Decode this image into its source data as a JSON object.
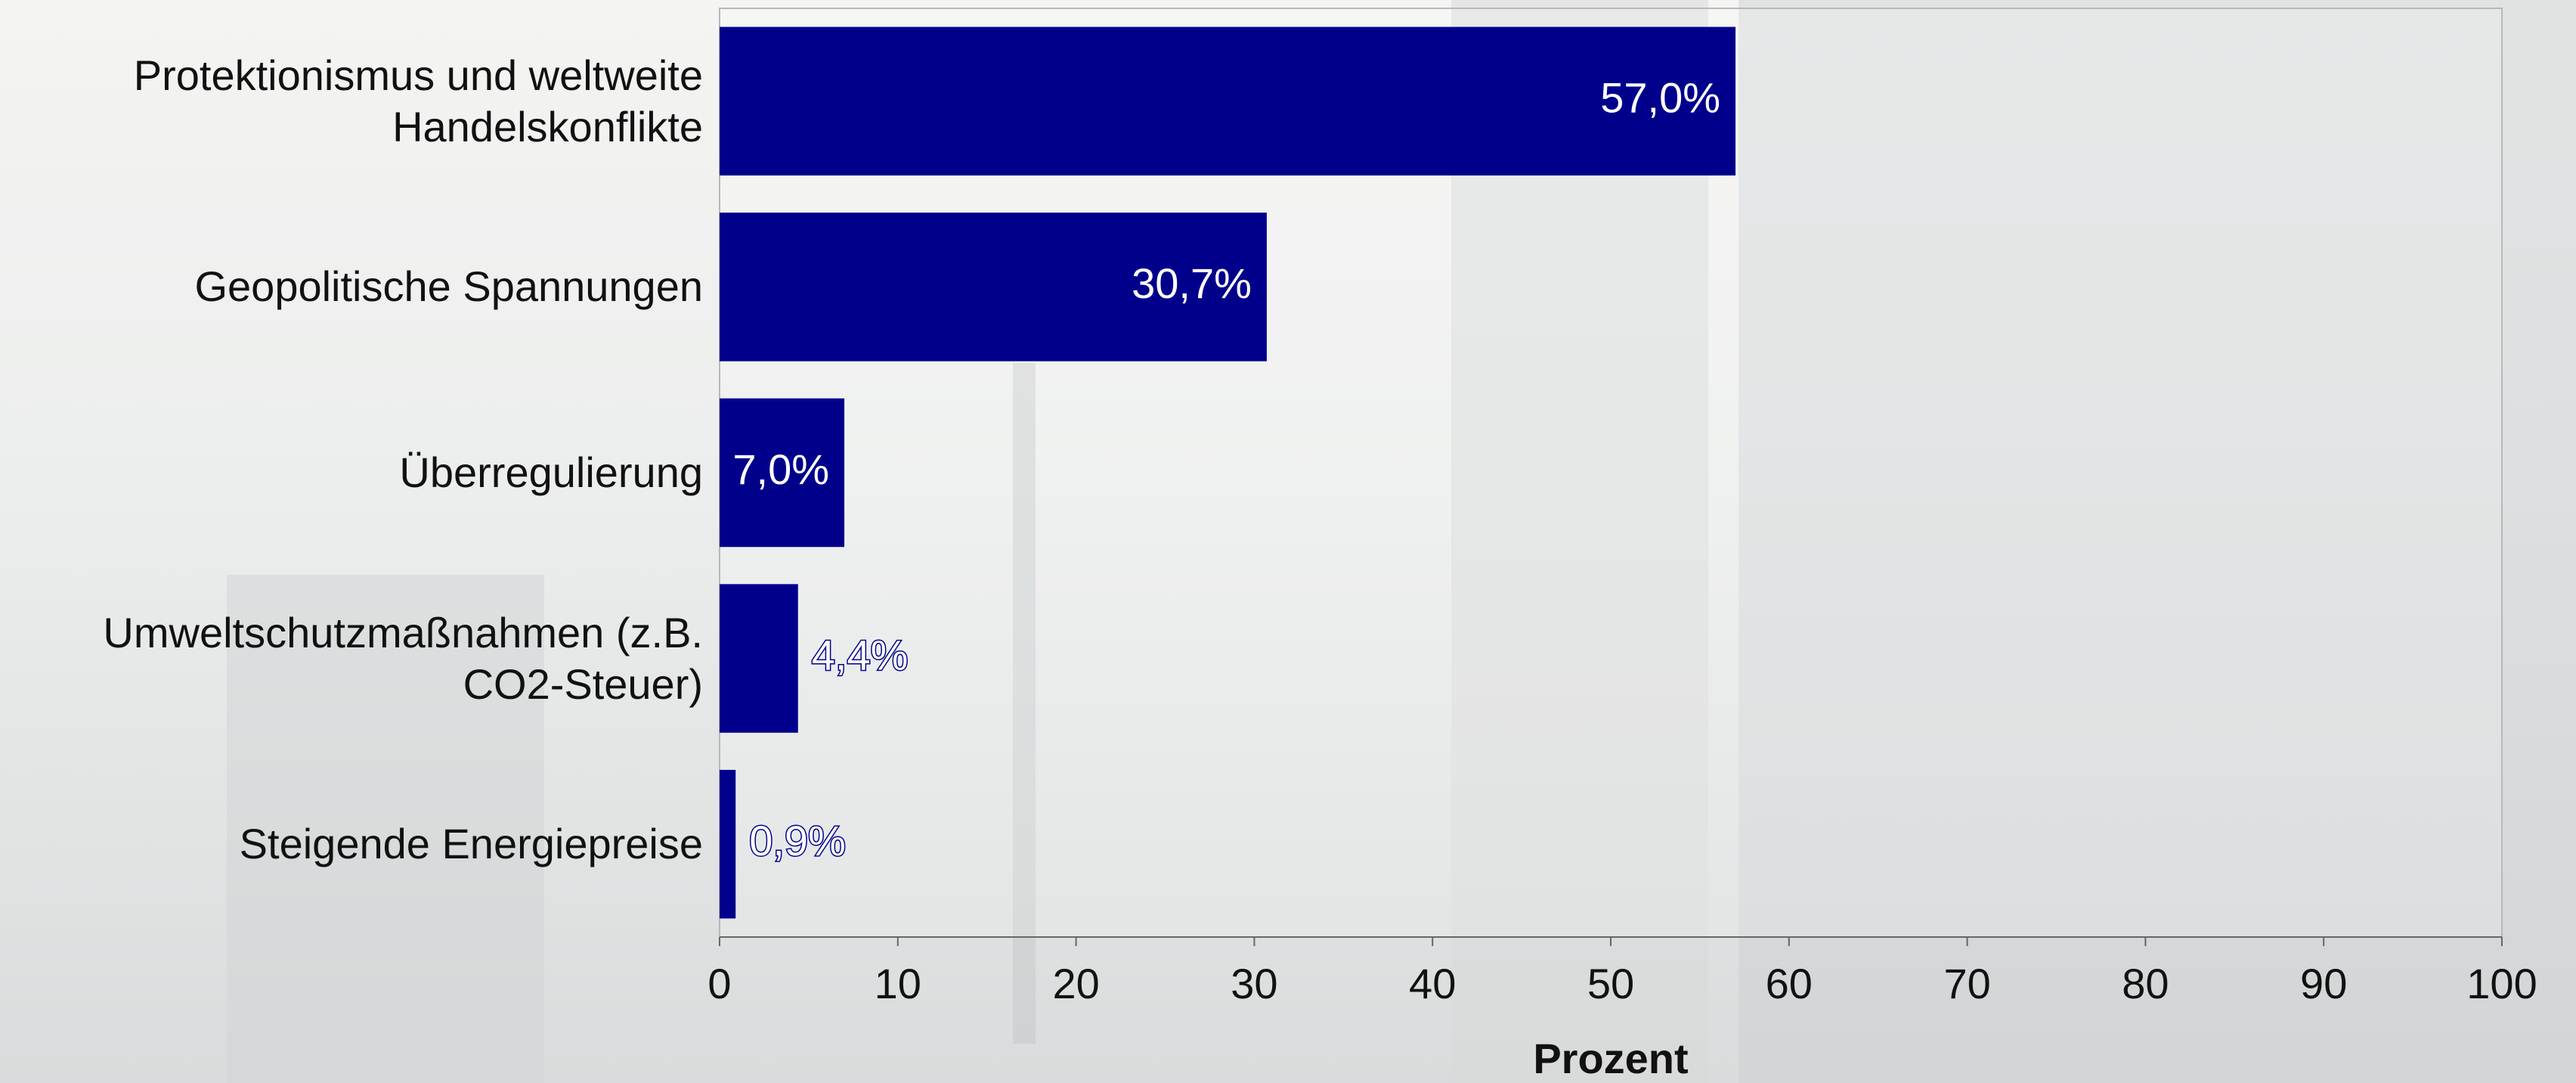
{
  "chart_data": {
    "type": "bar",
    "orientation": "horizontal",
    "categories": [
      "Protektionismus und weltweite Handelskonflikte",
      "Geopolitische Spannungen",
      "Überregulierung",
      "Umweltschutzmaßnahmen (z.B. CO2-Steuer)",
      "Steigende Energiepreise"
    ],
    "values": [
      57.0,
      30.7,
      7.0,
      4.4,
      0.9
    ],
    "value_labels": [
      "57,0%",
      "30,7%",
      "7,0%",
      "4,4%",
      "0,9%"
    ],
    "color": "#00008b",
    "xlim": [
      0,
      100
    ],
    "xticks": [
      0,
      10,
      20,
      30,
      40,
      50,
      60,
      70,
      80,
      90,
      100
    ],
    "xlabel": "Prozent",
    "grid": false
  }
}
